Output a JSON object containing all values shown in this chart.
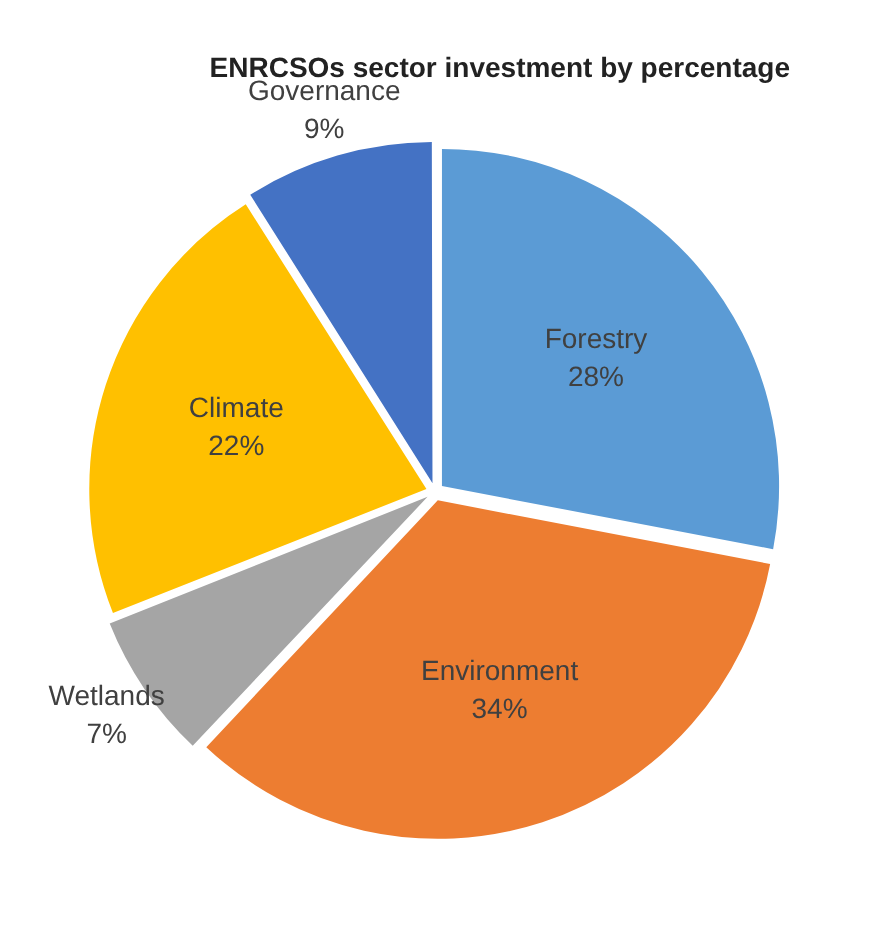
{
  "chart_data": {
    "type": "pie",
    "title": "ENRCSOs sector investment by percentage",
    "categories": [
      "Forestry",
      "Environment",
      "Wetlands",
      "Climate",
      "Governance"
    ],
    "values": [
      28,
      34,
      7,
      22,
      9
    ],
    "value_labels": [
      "28%",
      "34%",
      "7%",
      "22%",
      "9%"
    ],
    "colors": [
      "#5b9bd5",
      "#ed7d31",
      "#a5a5a5",
      "#ffc000",
      "#4472c4"
    ],
    "legend": false
  }
}
